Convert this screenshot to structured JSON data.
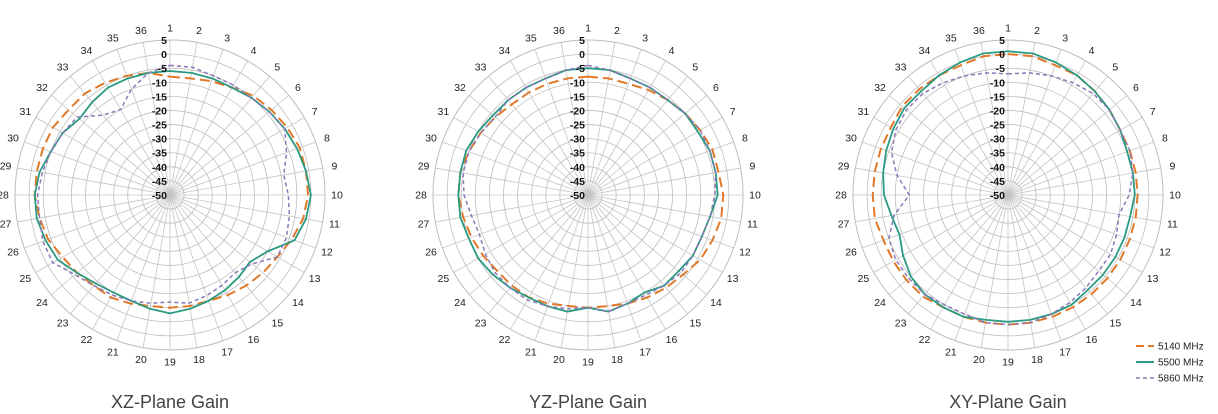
{
  "legend": {
    "entries": [
      "5140 MHz",
      "5500 MHz",
      "5860 MHz"
    ]
  },
  "chart_data": [
    {
      "type": "line",
      "polar": true,
      "title": "XZ-Plane Gain",
      "angle_labels": [
        "1",
        "2",
        "3",
        "4",
        "5",
        "6",
        "7",
        "8",
        "9",
        "10",
        "11",
        "12",
        "13",
        "14",
        "15",
        "16",
        "17",
        "18",
        "19",
        "20",
        "21",
        "22",
        "23",
        "24",
        "25",
        "26",
        "27",
        "28",
        "29",
        "30",
        "31",
        "32",
        "33",
        "34",
        "35",
        "36"
      ],
      "radial_ticks": [
        "5",
        "0",
        "-5",
        "-10",
        "-15",
        "-20",
        "-25",
        "-30",
        "-35",
        "-40",
        "-45",
        "-50"
      ],
      "rlim": [
        -50,
        5
      ],
      "grid": true,
      "series": [
        {
          "name": "5140 MHz",
          "color": "#e07a2a",
          "dash": "dashed",
          "values": [
            -8,
            -8,
            -7,
            -6,
            -4,
            -3,
            -2,
            -1,
            -1,
            -1,
            -2,
            -4,
            -6,
            -7,
            -8,
            -9,
            -10,
            -10,
            -10,
            -10,
            -9,
            -8,
            -8,
            -7,
            -6,
            -4,
            -3,
            -2,
            -2,
            -2,
            -2,
            -3,
            -3,
            -4,
            -5,
            -6
          ]
        },
        {
          "name": "5500 MHz",
          "color": "#2a9a82",
          "dash": "solid",
          "values": [
            -6,
            -6,
            -6,
            -6,
            -5,
            -4,
            -3,
            -2,
            -1,
            0,
            -1,
            -3,
            -10,
            -13,
            -12,
            -11,
            -10,
            -9,
            -8,
            -9,
            -10,
            -10,
            -9,
            -7,
            -4,
            -3,
            -2,
            -2,
            -3,
            -5,
            -6,
            -8,
            -7,
            -6,
            -6,
            -6
          ]
        },
        {
          "name": "5860 MHz",
          "color": "#8a78b8",
          "dash": "short-dash",
          "values": [
            -4,
            -4,
            -5,
            -5,
            -5,
            -4,
            -3,
            -6,
            -9,
            -8,
            -7,
            -6,
            -6,
            -12,
            -14,
            -13,
            -12,
            -11,
            -12,
            -11,
            -10,
            -9,
            -8,
            -6,
            -2,
            -2,
            -3,
            -3,
            -4,
            -5,
            -6,
            -7,
            -13,
            -15,
            -10,
            -6
          ]
        }
      ]
    },
    {
      "type": "line",
      "polar": true,
      "title": "YZ-Plane Gain",
      "angle_labels": [
        "1",
        "2",
        "3",
        "4",
        "5",
        "6",
        "7",
        "8",
        "9",
        "10",
        "11",
        "12",
        "13",
        "14",
        "15",
        "16",
        "17",
        "18",
        "19",
        "20",
        "21",
        "22",
        "23",
        "24",
        "25",
        "26",
        "27",
        "28",
        "29",
        "30",
        "31",
        "32",
        "33",
        "34",
        "35",
        "36"
      ],
      "radial_ticks": [
        "5",
        "0",
        "-5",
        "-10",
        "-15",
        "-20",
        "-25",
        "-30",
        "-35",
        "-40",
        "-45",
        "-50"
      ],
      "rlim": [
        -50,
        5
      ],
      "grid": true,
      "series": [
        {
          "name": "5140 MHz",
          "color": "#e07a2a",
          "dash": "dashed",
          "values": [
            -8,
            -8,
            -8,
            -7,
            -6,
            -5,
            -4,
            -3,
            -3,
            -2,
            -2,
            -3,
            -4,
            -6,
            -7,
            -8,
            -9,
            -10,
            -10,
            -10,
            -9,
            -8,
            -8,
            -8,
            -7,
            -6,
            -5,
            -4,
            -4,
            -5,
            -6,
            -7,
            -8,
            -8,
            -8,
            -8
          ]
        },
        {
          "name": "5500 MHz",
          "color": "#2a9a82",
          "dash": "solid",
          "values": [
            -5,
            -5,
            -6,
            -6,
            -6,
            -5,
            -5,
            -4,
            -4,
            -4,
            -6,
            -7,
            -7,
            -8,
            -8,
            -10,
            -9,
            -8,
            -10,
            -8,
            -8,
            -8,
            -7,
            -6,
            -5,
            -5,
            -4,
            -4,
            -4,
            -4,
            -5,
            -6,
            -6,
            -6,
            -6,
            -5
          ]
        },
        {
          "name": "5860 MHz",
          "color": "#8a78b8",
          "dash": "short-dash",
          "values": [
            -4,
            -5,
            -6,
            -6,
            -6,
            -5,
            -4,
            -4,
            -4,
            -5,
            -6,
            -7,
            -7,
            -7,
            -8,
            -9,
            -9,
            -8,
            -10,
            -9,
            -8,
            -7,
            -7,
            -7,
            -8,
            -9,
            -8,
            -6,
            -5,
            -5,
            -6,
            -7,
            -6,
            -6,
            -6,
            -5
          ]
        }
      ]
    },
    {
      "type": "line",
      "polar": true,
      "title": "XY-Plane Gain",
      "angle_labels": [
        "1",
        "2",
        "3",
        "4",
        "5",
        "6",
        "7",
        "8",
        "9",
        "10",
        "11",
        "12",
        "13",
        "14",
        "15",
        "16",
        "17",
        "18",
        "19",
        "20",
        "21",
        "22",
        "23",
        "24",
        "25",
        "26",
        "27",
        "28",
        "29",
        "30",
        "31",
        "32",
        "33",
        "34",
        "35",
        "36"
      ],
      "radial_ticks": [
        "5",
        "0",
        "-5",
        "-10",
        "-15",
        "-20",
        "-25",
        "-30",
        "-35",
        "-40",
        "-45",
        "-50"
      ],
      "rlim": [
        -50,
        5
      ],
      "grid": true,
      "series": [
        {
          "name": "5140 MHz",
          "color": "#e07a2a",
          "dash": "dashed",
          "values": [
            0,
            0,
            -1,
            -1,
            -2,
            -3,
            -4,
            -4,
            -4,
            -4,
            -4,
            -4,
            -4,
            -4,
            -4,
            -4,
            -4,
            -4,
            -4,
            -4,
            -4,
            -4,
            -3,
            -3,
            -3,
            -3,
            -2,
            -2,
            -2,
            -2,
            -2,
            -1,
            -1,
            -1,
            -1,
            0
          ]
        },
        {
          "name": "5500 MHz",
          "color": "#2a9a82",
          "dash": "solid",
          "values": [
            1,
            1,
            0,
            -1,
            -2,
            -3,
            -4,
            -5,
            -5,
            -5,
            -6,
            -6,
            -6,
            -6,
            -6,
            -5,
            -5,
            -5,
            -5,
            -5,
            -4,
            -4,
            -4,
            -5,
            -7,
            -9,
            -8,
            -6,
            -5,
            -4,
            -3,
            -2,
            -2,
            -1,
            0,
            1
          ]
        },
        {
          "name": "5860 MHz",
          "color": "#8a78b8",
          "dash": "short-dash",
          "values": [
            -7,
            -6,
            -5,
            -4,
            -3,
            -3,
            -4,
            -4,
            -5,
            -7,
            -10,
            -9,
            -8,
            -8,
            -7,
            -6,
            -5,
            -4,
            -4,
            -4,
            -5,
            -5,
            -4,
            -4,
            -4,
            -5,
            -9,
            -15,
            -10,
            -6,
            -4,
            -3,
            -3,
            -4,
            -5,
            -6
          ]
        }
      ]
    }
  ]
}
